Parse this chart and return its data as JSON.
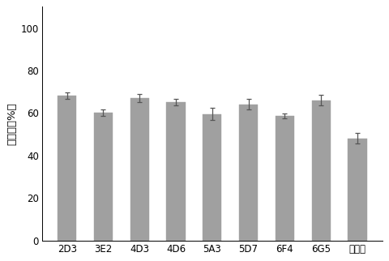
{
  "categories": [
    "2D3",
    "3E2",
    "4D3",
    "4D6",
    "5A3",
    "5D7",
    "6F4",
    "6G5",
    "阳霞素"
  ],
  "values": [
    68.0,
    60.0,
    67.0,
    65.0,
    59.5,
    64.0,
    58.5,
    66.0,
    48.0
  ],
  "errors": [
    1.5,
    1.5,
    2.0,
    1.5,
    3.0,
    2.5,
    1.2,
    2.5,
    2.5
  ],
  "bar_color": "#a0a0a0",
  "bar_edgecolor": "#a0a0a0",
  "ylabel": "抑制率（%）",
  "ylim": [
    0,
    110
  ],
  "yticks": [
    0,
    20,
    40,
    60,
    80,
    100
  ],
  "background_color": "#ffffff",
  "bar_width": 0.52,
  "ecolor": "#555555",
  "capsize": 2.5,
  "error_linewidth": 0.9
}
